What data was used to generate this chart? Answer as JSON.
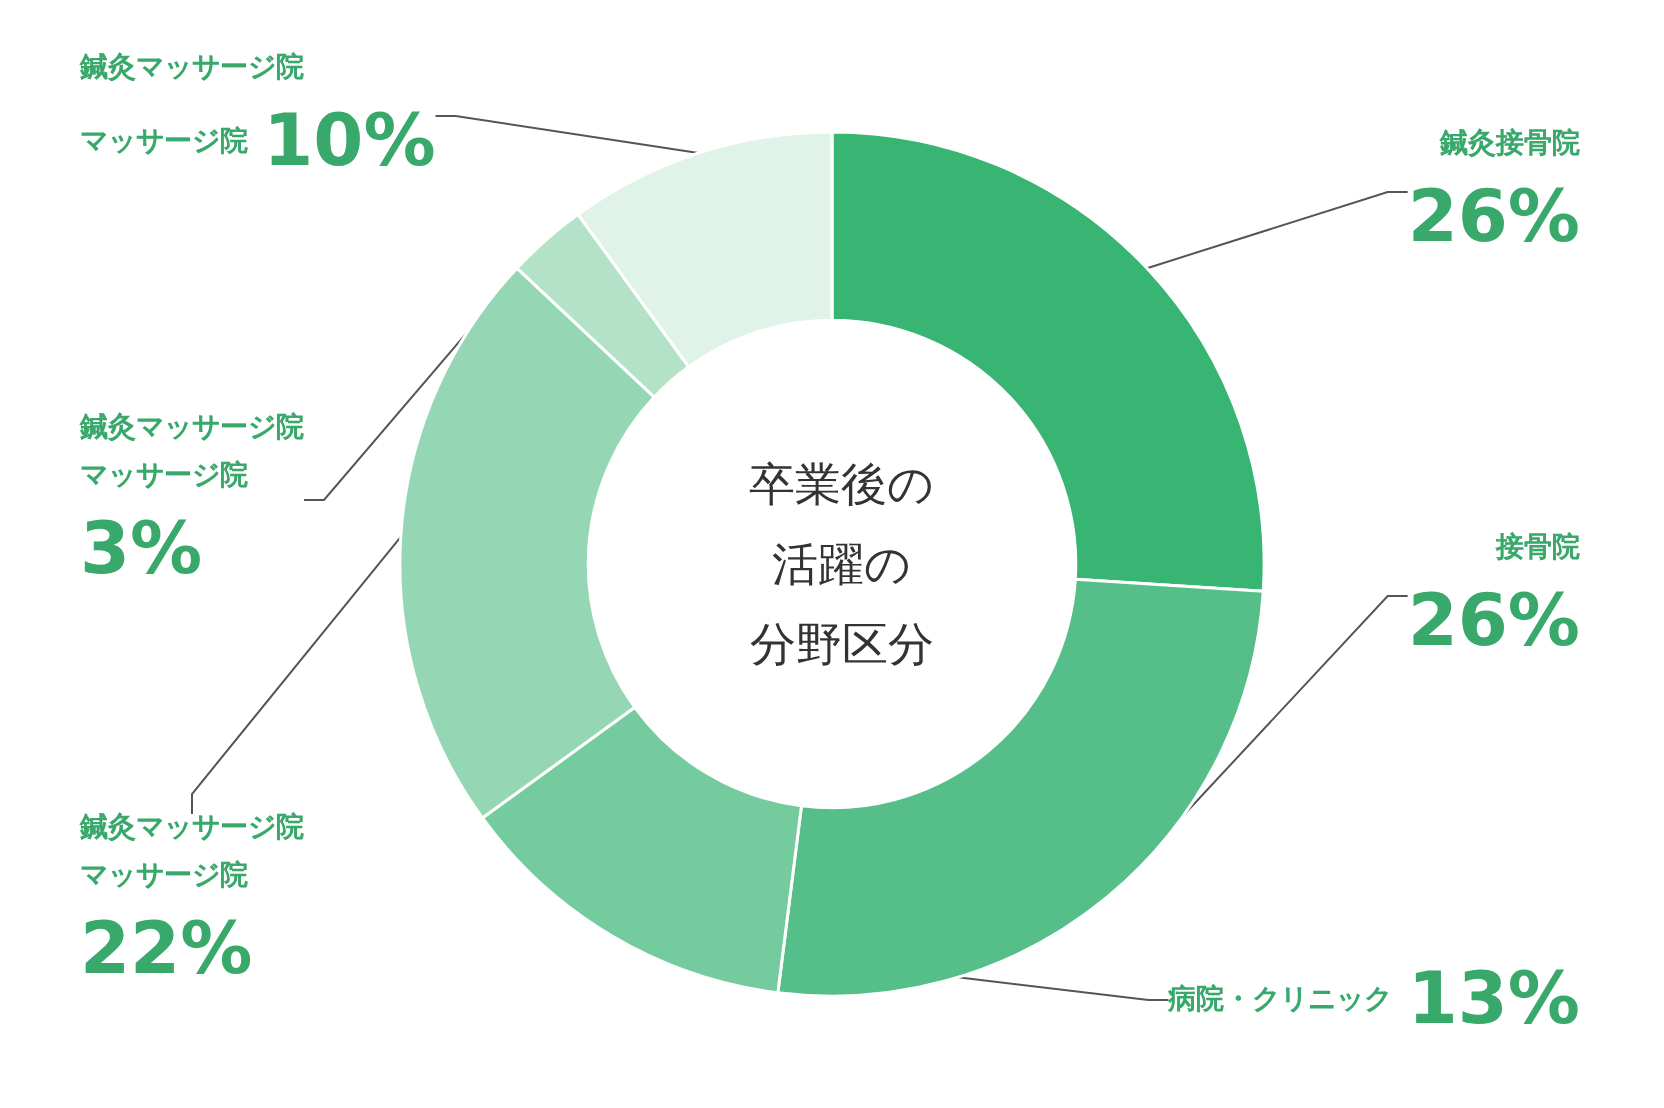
{
  "chart_data": {
    "type": "donut",
    "title": "卒業後の活躍の分野区分",
    "categories": [
      "鍼灸接骨院",
      "接骨院",
      "病院・クリニック",
      "鍼灸マッサージ院マッサージ院",
      "鍼灸マッサージ院マッサージ院",
      "鍼灸マッサージ院マッサージ院"
    ],
    "values": [
      26,
      26,
      13,
      22,
      3,
      10
    ],
    "value_labels": [
      "26%",
      "26%",
      "13%",
      "22%",
      "3%",
      "10%"
    ],
    "colors": [
      "#38b473",
      "#56bf89",
      "#74cb9e",
      "#95d7b4",
      "#b3e2c8",
      "#e0f3e8"
    ],
    "legend": false
  }
}
